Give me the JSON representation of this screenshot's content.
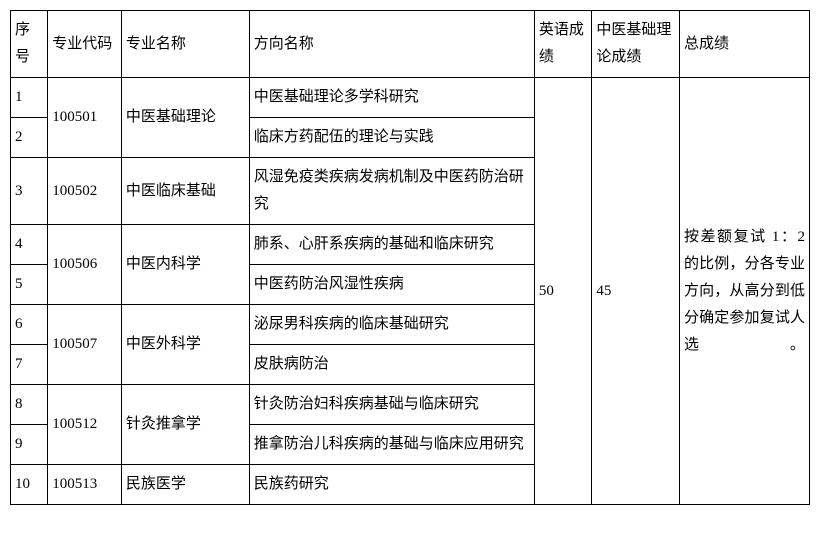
{
  "headers": {
    "seq": "序号",
    "code": "专业代码",
    "major": "专业名称",
    "direction": "方向名称",
    "english": "英语成绩",
    "tcm_basic": "中医基础理论成绩",
    "total": "总成绩"
  },
  "english_score": "50",
  "tcm_basic_score": "45",
  "total_note": "按差额复试 1：2 的比例，分各专业方向，从高分到低分确定参加复试人选。",
  "rows": [
    {
      "seq": "1",
      "code": "100501",
      "major": "中医基础理论",
      "direction": "中医基础理论多学科研究"
    },
    {
      "seq": "2",
      "direction": "临床方药配伍的理论与实践"
    },
    {
      "seq": "3",
      "code": "100502",
      "major": "中医临床基础",
      "direction": "风湿免疫类疾病发病机制及中医药防治研究"
    },
    {
      "seq": "4",
      "code": "100506",
      "major": "中医内科学",
      "direction": "肺系、心肝系疾病的基础和临床研究"
    },
    {
      "seq": "5",
      "direction": "中医药防治风湿性疾病"
    },
    {
      "seq": "6",
      "code": "100507",
      "major": "中医外科学",
      "direction": "泌尿男科疾病的临床基础研究"
    },
    {
      "seq": "7",
      "direction": "皮肤病防治"
    },
    {
      "seq": "8",
      "code": "100512",
      "major": "针灸推拿学",
      "direction": "针灸防治妇科疾病基础与临床研究"
    },
    {
      "seq": "9",
      "direction": "推拿防治儿科疾病的基础与临床应用研究"
    },
    {
      "seq": "10",
      "code": "100513",
      "major": "民族医学",
      "direction": "民族药研究"
    }
  ]
}
